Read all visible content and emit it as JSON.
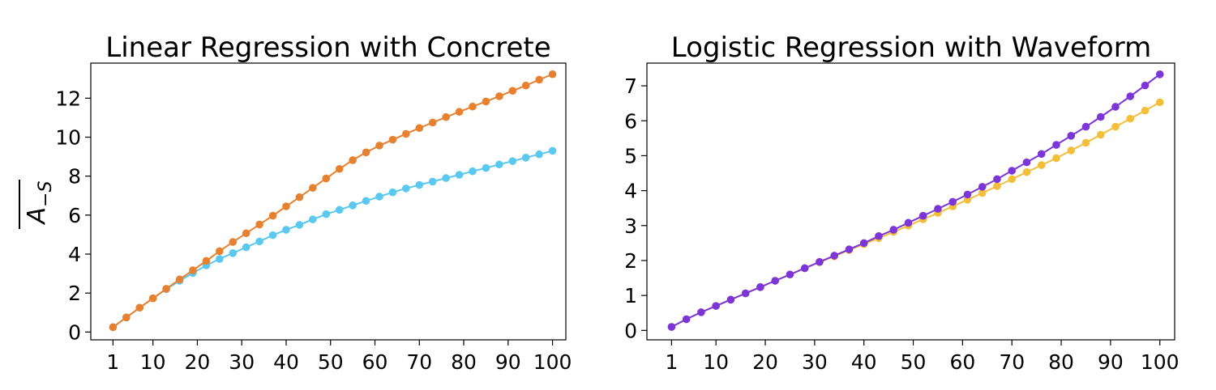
{
  "chart_data": [
    {
      "type": "line",
      "title": "Linear Regression with Concrete",
      "ylabel": "A",
      "ylabel_subscript": "−S",
      "x": [
        1,
        4,
        7,
        10,
        13,
        16,
        19,
        22,
        25,
        28,
        31,
        34,
        37,
        40,
        43,
        46,
        49,
        52,
        55,
        58,
        61,
        64,
        67,
        70,
        73,
        76,
        79,
        82,
        85,
        88,
        91,
        94,
        97,
        100
      ],
      "xticks": [
        1,
        10,
        20,
        30,
        40,
        50,
        60,
        70,
        80,
        90,
        100
      ],
      "xticklabels": [
        "1",
        "10",
        "20",
        "30",
        "40",
        "50",
        "60",
        "70",
        "80",
        "90",
        "100"
      ],
      "yticks": [
        0,
        2,
        4,
        6,
        8,
        10,
        12
      ],
      "yticklabels": [
        "0",
        "2",
        "4",
        "6",
        "8",
        "10",
        "12"
      ],
      "xlim": [
        -4,
        103
      ],
      "ylim": [
        -0.4,
        13.8
      ],
      "series": [
        {
          "color": "#5bc8f0",
          "values": [
            0.25,
            0.75,
            1.25,
            1.73,
            2.2,
            2.63,
            3.03,
            3.42,
            3.75,
            4.05,
            4.35,
            4.65,
            4.97,
            5.25,
            5.5,
            5.78,
            6.05,
            6.27,
            6.5,
            6.73,
            6.95,
            7.17,
            7.37,
            7.55,
            7.72,
            7.9,
            8.07,
            8.25,
            8.42,
            8.6,
            8.77,
            8.95,
            9.12,
            9.3
          ]
        },
        {
          "color": "#e8812f",
          "values": [
            0.25,
            0.75,
            1.25,
            1.73,
            2.22,
            2.7,
            3.17,
            3.65,
            4.15,
            4.62,
            5.07,
            5.52,
            5.97,
            6.45,
            6.92,
            7.4,
            7.88,
            8.37,
            8.82,
            9.22,
            9.57,
            9.87,
            10.17,
            10.47,
            10.75,
            11.03,
            11.3,
            11.57,
            11.83,
            12.1,
            12.38,
            12.65,
            12.95,
            13.23
          ]
        }
      ]
    },
    {
      "type": "line",
      "title": "Logistic Regression with Waveform",
      "x": [
        1,
        4,
        7,
        10,
        13,
        16,
        19,
        22,
        25,
        28,
        31,
        34,
        37,
        40,
        43,
        46,
        49,
        52,
        55,
        58,
        61,
        64,
        67,
        70,
        73,
        76,
        79,
        82,
        85,
        88,
        91,
        94,
        97,
        100
      ],
      "xticks": [
        1,
        10,
        20,
        30,
        40,
        50,
        60,
        70,
        80,
        90,
        100
      ],
      "xticklabels": [
        "1",
        "10",
        "20",
        "30",
        "40",
        "50",
        "60",
        "70",
        "80",
        "90",
        "100"
      ],
      "yticks": [
        0,
        1,
        2,
        3,
        4,
        5,
        6,
        7
      ],
      "yticklabels": [
        "0",
        "1",
        "2",
        "3",
        "4",
        "5",
        "6",
        "7"
      ],
      "xlim": [
        -4,
        103
      ],
      "ylim": [
        -0.27,
        7.65
      ],
      "series": [
        {
          "color": "#f3bf3a",
          "values": [
            0.1,
            0.32,
            0.52,
            0.7,
            0.88,
            1.06,
            1.24,
            1.42,
            1.6,
            1.78,
            1.95,
            2.12,
            2.3,
            2.47,
            2.64,
            2.82,
            3.0,
            3.18,
            3.36,
            3.55,
            3.74,
            3.93,
            4.13,
            4.33,
            4.53,
            4.73,
            4.93,
            5.15,
            5.37,
            5.6,
            5.83,
            6.06,
            6.29,
            6.53
          ]
        },
        {
          "color": "#7c35d8",
          "values": [
            0.1,
            0.32,
            0.52,
            0.7,
            0.88,
            1.06,
            1.24,
            1.42,
            1.6,
            1.78,
            1.96,
            2.14,
            2.32,
            2.5,
            2.7,
            2.88,
            3.08,
            3.28,
            3.48,
            3.68,
            3.89,
            4.11,
            4.33,
            4.57,
            4.81,
            5.05,
            5.31,
            5.57,
            5.83,
            6.11,
            6.4,
            6.7,
            7.01,
            7.33
          ]
        }
      ]
    }
  ]
}
